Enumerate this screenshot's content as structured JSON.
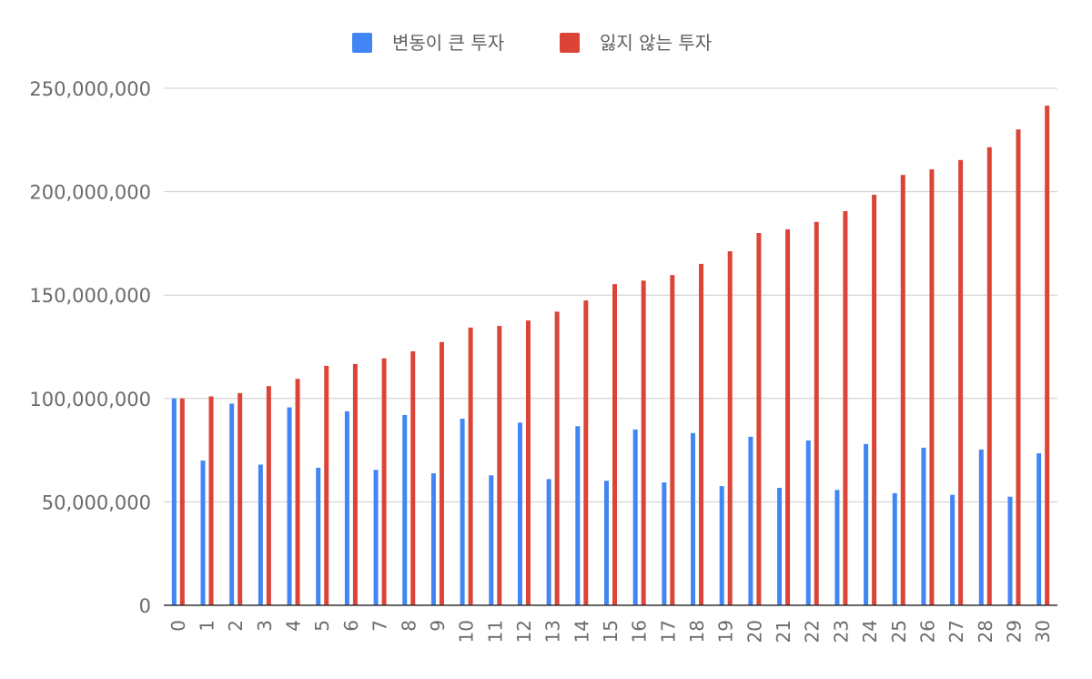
{
  "chart_data": {
    "type": "bar",
    "title": "",
    "xlabel": "",
    "ylabel": "",
    "ylim": [
      0,
      250000000
    ],
    "yticks": [
      0,
      50000000,
      100000000,
      150000000,
      200000000,
      250000000
    ],
    "ytick_labels": [
      "0",
      "50,000,000",
      "100,000,000",
      "150,000,000",
      "200,000,000",
      "250,000,000"
    ],
    "grid": true,
    "legend_position": "top",
    "categories": [
      "0",
      "1",
      "2",
      "3",
      "4",
      "5",
      "6",
      "7",
      "8",
      "9",
      "10",
      "11",
      "12",
      "13",
      "14",
      "15",
      "16",
      "17",
      "18",
      "19",
      "20",
      "21",
      "22",
      "23",
      "24",
      "25",
      "26",
      "27",
      "28",
      "29",
      "30"
    ],
    "series": [
      {
        "name": "변동이 큰 투자",
        "color": "#4285f4",
        "values": [
          100000000,
          70000000,
          97500000,
          68000000,
          95700000,
          66500000,
          93800000,
          65500000,
          92000000,
          63800000,
          90200000,
          62800000,
          88300000,
          61000000,
          86600000,
          60200000,
          85000000,
          59400000,
          83300000,
          57600000,
          81500000,
          56800000,
          79700000,
          55800000,
          78000000,
          54200000,
          76200000,
          53400000,
          75300000,
          52500000,
          73500000
        ]
      },
      {
        "name": "잃지 않는 투자",
        "color": "#db4437",
        "values": [
          100000000,
          101000000,
          102600000,
          106000000,
          109500000,
          115800000,
          116700000,
          119400000,
          122800000,
          127300000,
          134300000,
          135100000,
          137700000,
          142000000,
          147400000,
          155300000,
          157000000,
          159700000,
          165100000,
          171200000,
          180000000,
          181800000,
          185400000,
          190600000,
          198500000,
          208100000,
          210800000,
          215300000,
          221500000,
          230100000,
          241600000
        ]
      }
    ]
  }
}
